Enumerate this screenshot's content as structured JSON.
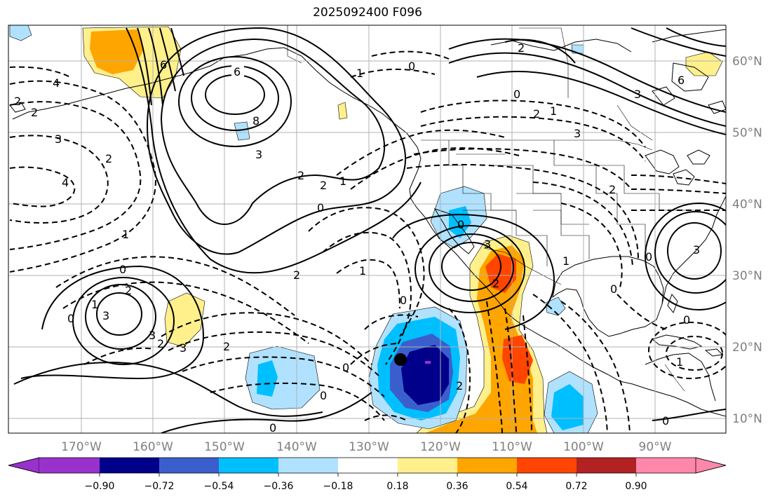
{
  "title": "2025092400 F096",
  "longitude_labels": [
    "170°W",
    "160°W",
    "150°W",
    "140°W",
    "130°W",
    "120°W",
    "110°W",
    "100°W",
    "90°W"
  ],
  "latitude_labels": [
    "60°N",
    "50°N",
    "40°N",
    "30°N",
    "20°N",
    "10°N"
  ],
  "colorbar": {
    "colors": [
      "#9932cc",
      "#00008b",
      "#3a5fcd",
      "#00bfff",
      "#b0e2ff",
      "#ffffff",
      "#fff08c",
      "#ffa500",
      "#ff4500",
      "#b22222",
      "#ff88aa"
    ],
    "tick_labels": [
      "−0.90",
      "−0.72",
      "−0.54",
      "−0.36",
      "−0.18",
      "0.18",
      "0.36",
      "0.54",
      "0.72",
      "0.90"
    ]
  },
  "contour_labels": [
    "6",
    "4",
    "2",
    "2",
    "3",
    "4",
    "6",
    "8",
    "3",
    "2",
    "2",
    "1",
    "0",
    "0",
    "1",
    "2",
    "1",
    "0",
    "2",
    "3",
    "2",
    "1",
    "0",
    "3",
    "2",
    "3",
    "0",
    "2",
    "3",
    "2",
    "2",
    "0",
    "0",
    "2",
    "1",
    "0",
    "0",
    "0",
    "1",
    "0",
    "0",
    "3",
    "0",
    "1",
    "0",
    "3",
    "6",
    "2",
    "2"
  ]
}
